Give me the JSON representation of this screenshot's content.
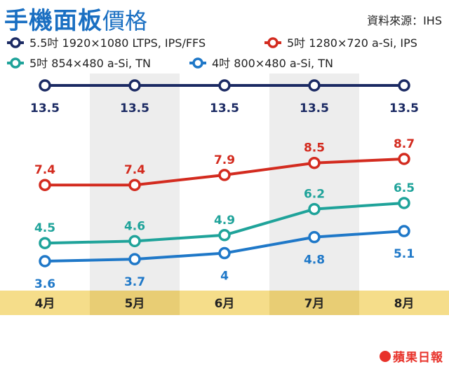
{
  "title": {
    "main": "手機面板",
    "sub": "價格"
  },
  "source": "資料來源：IHS",
  "logo": "蘋果日報",
  "colors": {
    "background_stripe": "#ededed",
    "axis_band": "#f5dd8a",
    "axis_band_dark": "#e8cd74"
  },
  "chart_data": {
    "type": "line",
    "categories": [
      "4月",
      "5月",
      "6月",
      "7月",
      "8月"
    ],
    "series": [
      {
        "name": "5.5吋 1920×1080 LTPS, IPS/FFS",
        "color": "#1b2a63",
        "values": [
          13.5,
          13.5,
          13.5,
          13.5,
          13.5
        ]
      },
      {
        "name": "5吋 1280×720 a-Si, IPS",
        "color": "#d32b1f",
        "values": [
          7.4,
          7.4,
          7.9,
          8.5,
          8.7
        ]
      },
      {
        "name": "5吋 854×480 a-Si, TN",
        "color": "#1fa39a",
        "values": [
          4.5,
          4.6,
          4.9,
          6.2,
          6.5
        ]
      },
      {
        "name": "4吋 800×480 a-Si, TN",
        "color": "#1f78c8",
        "values": [
          3.6,
          3.7,
          4,
          4.8,
          5.1
        ]
      }
    ],
    "labels": [
      [
        "13.5",
        "13.5",
        "13.5",
        "13.5",
        "13.5"
      ],
      [
        "7.4",
        "7.4",
        "7.9",
        "8.5",
        "8.7"
      ],
      [
        "4.5",
        "4.6",
        "4.9",
        "6.2",
        "6.5"
      ],
      [
        "3.6",
        "3.7",
        "4",
        "4.8",
        "5.1"
      ]
    ],
    "label_position": [
      [
        "below",
        "below",
        "below",
        "below",
        "below"
      ],
      [
        "above",
        "above",
        "above",
        "above",
        "above"
      ],
      [
        "above",
        "above",
        "above",
        "above",
        "above"
      ],
      [
        "below",
        "below",
        "below",
        "below",
        "below"
      ]
    ],
    "legend_position": "top",
    "grid": false
  }
}
